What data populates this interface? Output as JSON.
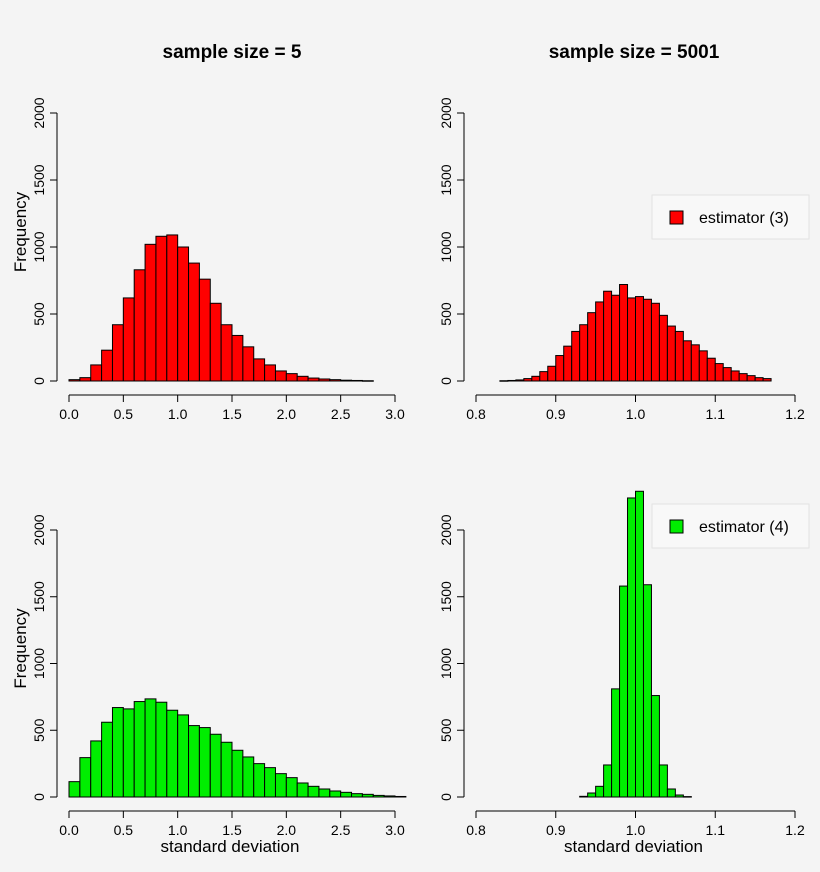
{
  "chart_data": [
    {
      "type": "bar",
      "title": "sample size = 5",
      "xlabel": "",
      "ylabel": "Frequency",
      "xlim": [
        0.0,
        2.8
      ],
      "ylim": [
        0,
        2000
      ],
      "xticks": [
        "0.0",
        "0.5",
        "1.0",
        "1.5",
        "2.0",
        "2.5",
        "3.0"
      ],
      "yticks": [
        "0",
        "500",
        "1000",
        "1500",
        "2000"
      ],
      "bin_width": 0.1,
      "bin_start": 0.0,
      "values": [
        10,
        25,
        120,
        230,
        420,
        620,
        830,
        1020,
        1080,
        1090,
        1000,
        880,
        760,
        580,
        420,
        340,
        255,
        165,
        120,
        75,
        55,
        35,
        22,
        15,
        10,
        6,
        4,
        2
      ],
      "fill": "#ff0000",
      "legend": null
    },
    {
      "type": "bar",
      "title": "sample size = 5001",
      "xlabel": "",
      "ylabel": "",
      "xlim": [
        0.8,
        1.22
      ],
      "ylim": [
        0,
        2000
      ],
      "xticks": [
        "0.8",
        "0.9",
        "1.0",
        "1.1",
        "1.2"
      ],
      "yticks": [
        "0",
        "500",
        "1000",
        "1500",
        "2000"
      ],
      "bin_width": 0.01,
      "bin_start": 0.83,
      "values": [
        2,
        4,
        8,
        18,
        35,
        70,
        110,
        190,
        260,
        370,
        420,
        510,
        590,
        670,
        640,
        720,
        620,
        630,
        610,
        580,
        490,
        410,
        370,
        300,
        270,
        225,
        170,
        130,
        100,
        75,
        55,
        40,
        25,
        18
      ],
      "fill": "#ff0000",
      "legend": "estimator (3)"
    },
    {
      "type": "bar",
      "title": "",
      "xlabel": "standard deviation",
      "ylabel": "Frequency",
      "xlim": [
        0.0,
        3.1
      ],
      "ylim": [
        0,
        2000
      ],
      "xticks": [
        "0.0",
        "0.5",
        "1.0",
        "1.5",
        "2.0",
        "2.5",
        "3.0"
      ],
      "yticks": [
        "0",
        "500",
        "1000",
        "1500",
        "2000"
      ],
      "bin_width": 0.1,
      "bin_start": 0.0,
      "values": [
        115,
        295,
        420,
        560,
        670,
        660,
        715,
        735,
        710,
        650,
        615,
        535,
        520,
        470,
        410,
        350,
        300,
        250,
        220,
        175,
        145,
        105,
        80,
        60,
        45,
        35,
        25,
        20,
        12,
        8,
        4
      ],
      "fill": "#00ee00",
      "legend": null
    },
    {
      "type": "bar",
      "title": "",
      "xlabel": "standard deviation",
      "ylabel": "",
      "xlim": [
        0.8,
        1.2
      ],
      "ylim": [
        0,
        2000
      ],
      "xticks": [
        "0.8",
        "0.9",
        "1.0",
        "1.1",
        "1.2"
      ],
      "yticks": [
        "0",
        "500",
        "1000",
        "1500",
        "2000"
      ],
      "bin_width": 0.01,
      "bin_start": 0.93,
      "values": [
        5,
        30,
        80,
        240,
        810,
        1580,
        2240,
        2290,
        1590,
        760,
        240,
        60,
        15,
        3
      ],
      "fill": "#00ee00",
      "legend": "estimator (4)"
    }
  ]
}
